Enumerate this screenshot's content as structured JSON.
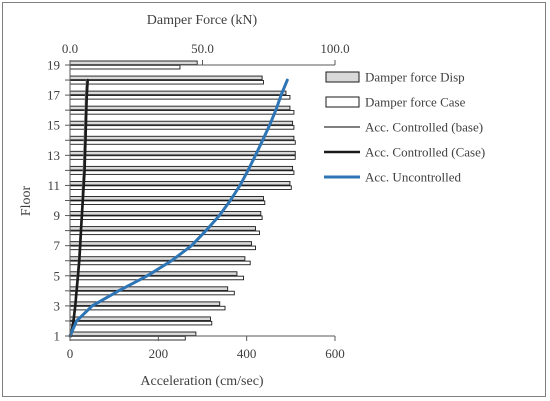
{
  "chart_data": {
    "type": "bar",
    "orientation": "horizontal",
    "primary_axis": {
      "xlabel": "Acceleration (cm/sec)",
      "xlim": [
        0,
        600
      ],
      "xticks": [
        "0",
        "200",
        "400",
        "600"
      ]
    },
    "secondary_axis": {
      "xlabel": "Damper Force (kN)",
      "xlim": [
        0,
        100
      ],
      "xticks": [
        "0.0",
        "50.0",
        "100.0"
      ]
    },
    "ylabel": "Floor",
    "ylim": [
      1,
      19
    ],
    "yticks": [
      "1",
      "3",
      "5",
      "7",
      "9",
      "11",
      "13",
      "15",
      "17",
      "19"
    ],
    "floors": [
      1,
      2,
      3,
      4,
      5,
      6,
      7,
      8,
      9,
      10,
      11,
      12,
      13,
      14,
      15,
      16,
      17,
      18,
      19
    ],
    "series": [
      {
        "name": "Damper force Disp",
        "kind": "bar",
        "axis": "secondary",
        "color": "#d9d9d9",
        "values": [
          47.5,
          53.0,
          56.5,
          59.5,
          63.0,
          66.0,
          68.5,
          70.0,
          72.0,
          73.0,
          83.0,
          84.0,
          85.0,
          84.5,
          84.0,
          83.0,
          81.5,
          72.5,
          48.0
        ]
      },
      {
        "name": "Damper force Case",
        "kind": "bar",
        "axis": "secondary",
        "color": "#ffffff",
        "values": [
          43.5,
          53.5,
          58.5,
          62.0,
          65.5,
          68.0,
          70.0,
          71.5,
          72.5,
          73.5,
          83.5,
          84.5,
          85.0,
          85.0,
          84.5,
          84.5,
          83.0,
          73.0,
          41.5
        ]
      },
      {
        "name": "Acc. Controlled (base)",
        "kind": "line",
        "axis": "primary",
        "color": "#808080",
        "x": [
          2,
          7,
          11,
          14,
          17,
          20,
          22,
          24,
          26,
          28,
          29,
          31,
          32,
          33,
          34,
          35,
          36,
          38
        ],
        "y": [
          1,
          2,
          3,
          4,
          5,
          6,
          7,
          8,
          9,
          10,
          11,
          12,
          13,
          14,
          15,
          16,
          17,
          18
        ]
      },
      {
        "name": "Acc. Controlled (Case)",
        "kind": "line",
        "axis": "primary",
        "color": "#1a1a1a",
        "x": [
          2,
          8,
          12,
          15,
          18,
          21,
          23,
          25,
          27,
          29,
          31,
          33,
          34,
          35,
          36,
          37,
          38,
          40
        ],
        "y": [
          1,
          2,
          3,
          4,
          5,
          6,
          7,
          8,
          9,
          10,
          11,
          12,
          13,
          14,
          15,
          16,
          17,
          18
        ]
      },
      {
        "name": "Acc. Uncontrolled",
        "kind": "line",
        "axis": "primary",
        "color": "#2e75b6",
        "x": [
          0,
          15,
          50,
          110,
          175,
          230,
          275,
          308,
          338,
          363,
          385,
          403,
          420,
          436,
          452,
          466,
          478,
          492
        ],
        "y": [
          1,
          2,
          3,
          4,
          5,
          6,
          7,
          8,
          9,
          10,
          11,
          12,
          13,
          14,
          15,
          16,
          17,
          18
        ]
      }
    ],
    "legend_position": "right",
    "grid": false
  }
}
